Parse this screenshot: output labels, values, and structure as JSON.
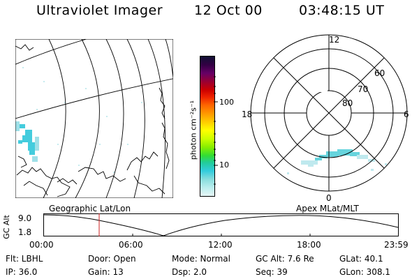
{
  "header": {
    "title": "Ultraviolet Imager",
    "date": "12 Oct 00",
    "time": "03:48:15 UT"
  },
  "colorbar": {
    "unit_label": "photon cm⁻²s⁻¹",
    "ticks": [
      "100",
      "10"
    ],
    "colors": [
      "#111133",
      "#330044",
      "#660066",
      "#990033",
      "#cc0000",
      "#ee2200",
      "#ff6600",
      "#ff9900",
      "#ffcc00",
      "#ffff00",
      "#ccff00",
      "#88ee00",
      "#33dd33",
      "#22cc99",
      "#33ccdd",
      "#88dddd",
      "#bbeeee",
      "#e6f6f6"
    ]
  },
  "left_panel": {
    "caption": "Geographic Lat/Lon"
  },
  "right_panel": {
    "caption": "Apex MLat/MLT",
    "lat_labels": [
      "60",
      "70",
      "80"
    ],
    "mlt_labels": {
      "top": "12",
      "left": "18",
      "right": "6",
      "bottom": "0"
    }
  },
  "timeline": {
    "ylabel": "GC Alt",
    "yticks": [
      "9.0",
      "1.8"
    ],
    "xticks": [
      "00:00",
      "06:00",
      "12:00",
      "18:00",
      "23:59"
    ],
    "marker_color": "#cc2222"
  },
  "info": {
    "row1": {
      "flt": "Flt: LBHL",
      "door": "Door: Open",
      "mode": "Mode: Normal",
      "gcalt": "GC Alt: 7.6 Re",
      "glat": "GLat:  40.1"
    },
    "row2": {
      "ip": "IP: 36.0",
      "gain": "Gain: 13",
      "dsp": "Dsp:    2.0",
      "seq": "Seq: 39",
      "glon": "GLon: 308.1"
    }
  }
}
